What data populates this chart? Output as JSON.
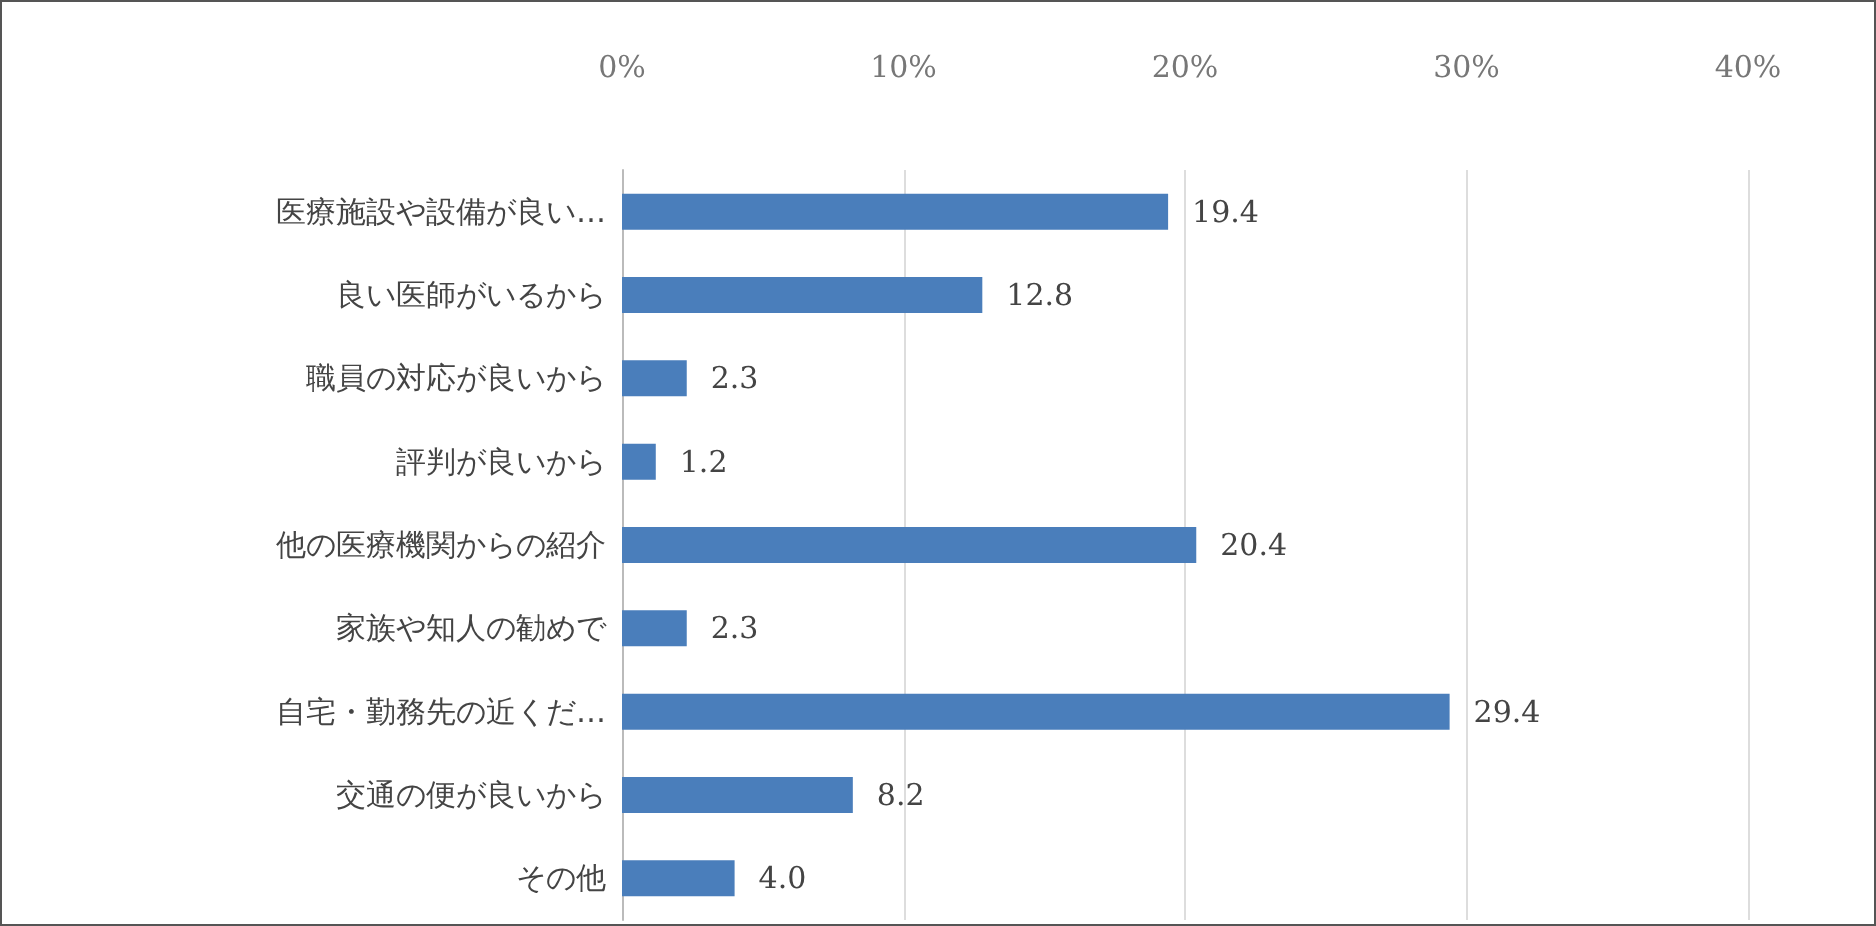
{
  "chart_data": {
    "type": "bar",
    "orientation": "horizontal",
    "categories": [
      "医療施設や設備が良い…",
      "良い医師がいるから",
      "職員の対応が良いから",
      "評判が良いから",
      "他の医療機関からの紹介",
      "家族や知人の勧めで",
      "自宅・勤務先の近くだ…",
      "交通の便が良いから",
      "その他"
    ],
    "values": [
      19.4,
      12.8,
      2.3,
      1.2,
      20.4,
      2.3,
      29.4,
      8.2,
      4.0
    ],
    "value_labels": [
      "19.4",
      "12.8",
      "2.3",
      "1.2",
      "20.4",
      "2.3",
      "29.4",
      "8.2",
      "4.0"
    ],
    "color": "#4a7ebb",
    "xlim": [
      0,
      40
    ],
    "xticks": [
      {
        "value": 0,
        "label": "0%"
      },
      {
        "value": 10,
        "label": "10%"
      },
      {
        "value": 20,
        "label": "20%"
      },
      {
        "value": 30,
        "label": "30%"
      },
      {
        "value": 40,
        "label": "40%"
      }
    ],
    "grid": "x"
  }
}
